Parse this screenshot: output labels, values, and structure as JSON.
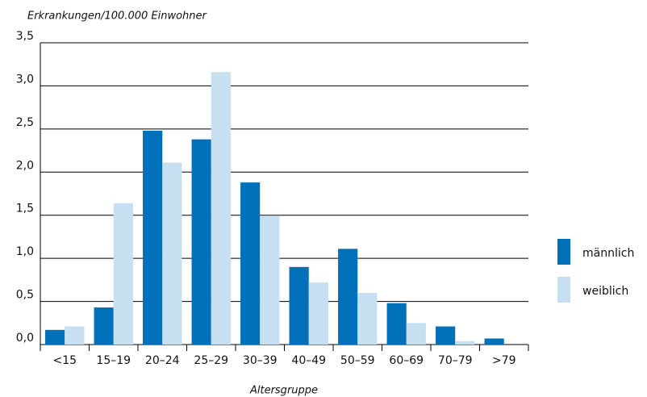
{
  "chart_data": {
    "type": "bar",
    "title": "Erkrankungen/100.000 Einwohner",
    "x_label": "Altersgruppe",
    "categories": [
      "<15",
      "15–19",
      "20–24",
      "25–29",
      "30–39",
      "40–49",
      "50–59",
      "60–69",
      "70–79",
      ">79"
    ],
    "series": [
      {
        "name": "männlich",
        "color": "#0070b8",
        "values": [
          0.17,
          0.43,
          2.48,
          2.38,
          1.88,
          0.9,
          1.11,
          0.48,
          0.21,
          0.07
        ]
      },
      {
        "name": "weiblich",
        "color": "#c6e0f2",
        "values": [
          0.21,
          1.64,
          2.11,
          3.16,
          1.49,
          0.72,
          0.6,
          0.25,
          0.04,
          null
        ]
      }
    ],
    "ylim": [
      0,
      3.5
    ],
    "yticks": [
      {
        "value": 0,
        "label": "0,0"
      },
      {
        "value": 0.5,
        "label": "0,5"
      },
      {
        "value": 1,
        "label": "1,0"
      },
      {
        "value": 1.5,
        "label": "1,5"
      },
      {
        "value": 2,
        "label": "2,0"
      },
      {
        "value": 2.5,
        "label": "2,5"
      },
      {
        "value": 3,
        "label": "3,0"
      },
      {
        "value": 3.5,
        "label": "3,5"
      }
    ],
    "grid": true,
    "legend": "right"
  }
}
